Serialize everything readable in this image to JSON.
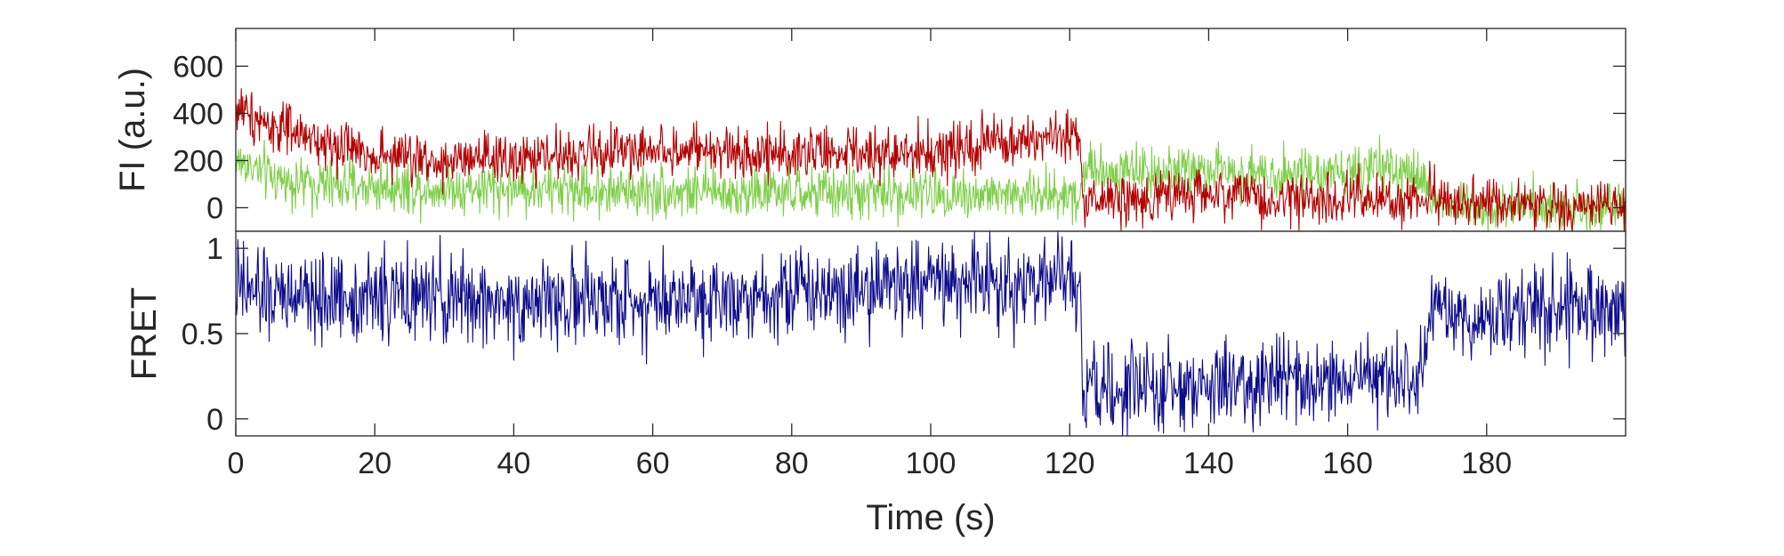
{
  "chart_data": [
    {
      "type": "line",
      "panel": "top",
      "xlabel": "",
      "ylabel": "FI (a.u.)",
      "xlim": [
        0,
        200
      ],
      "ylim": [
        -100,
        760
      ],
      "yticks": [
        0,
        200,
        400,
        600
      ],
      "ytick_labels": [
        "0",
        "200",
        "400",
        "600"
      ],
      "grid": false,
      "legend": "none",
      "series": [
        {
          "key": "donor",
          "color": "#7fcf4a",
          "noise": 55,
          "x": [
            0,
            2,
            5,
            10,
            20,
            40,
            60,
            80,
            100,
            110,
            120,
            121.5,
            122,
            125,
            130,
            140,
            150,
            160,
            165,
            170,
            171.5,
            172,
            180,
            190,
            200
          ],
          "y": [
            200,
            180,
            130,
            100,
            90,
            80,
            70,
            60,
            60,
            55,
            55,
            60,
            170,
            160,
            160,
            150,
            150,
            150,
            150,
            140,
            120,
            20,
            10,
            5,
            5
          ]
        },
        {
          "key": "acceptor",
          "color": "#b30000",
          "noise": 55,
          "x": [
            0,
            2,
            5,
            10,
            20,
            30,
            40,
            50,
            60,
            70,
            80,
            90,
            100,
            110,
            115,
            120,
            121.5,
            122,
            125,
            130,
            140,
            150,
            160,
            170,
            180,
            190,
            200
          ],
          "y": [
            420,
            400,
            350,
            290,
            230,
            190,
            200,
            230,
            250,
            230,
            240,
            220,
            240,
            270,
            280,
            290,
            280,
            40,
            30,
            40,
            60,
            40,
            40,
            40,
            20,
            10,
            5
          ]
        }
      ]
    },
    {
      "type": "line",
      "panel": "bottom",
      "xlabel": "Time (s)",
      "ylabel": "FRET",
      "xlim": [
        0,
        200
      ],
      "ylim": [
        -0.1,
        1.1
      ],
      "xticks": [
        0,
        20,
        40,
        60,
        80,
        100,
        120,
        140,
        160,
        180
      ],
      "xtick_labels": [
        "0",
        "20",
        "40",
        "60",
        "80",
        "100",
        "120",
        "140",
        "160",
        "180"
      ],
      "yticks": [
        0,
        0.5,
        1
      ],
      "ytick_labels": [
        "0",
        "0.5",
        "1"
      ],
      "grid": false,
      "legend": "none",
      "series": [
        {
          "key": "fret",
          "color": "#0d0d8c",
          "noise": 0.13,
          "x": [
            0,
            10,
            20,
            40,
            60,
            80,
            100,
            110,
            120,
            121.5,
            122,
            130,
            140,
            150,
            160,
            171,
            172,
            180,
            190,
            200
          ],
          "y": [
            0.75,
            0.7,
            0.72,
            0.68,
            0.7,
            0.75,
            0.8,
            0.8,
            0.8,
            0.78,
            0.15,
            0.15,
            0.2,
            0.2,
            0.22,
            0.25,
            0.6,
            0.6,
            0.65,
            0.6
          ]
        }
      ]
    }
  ]
}
